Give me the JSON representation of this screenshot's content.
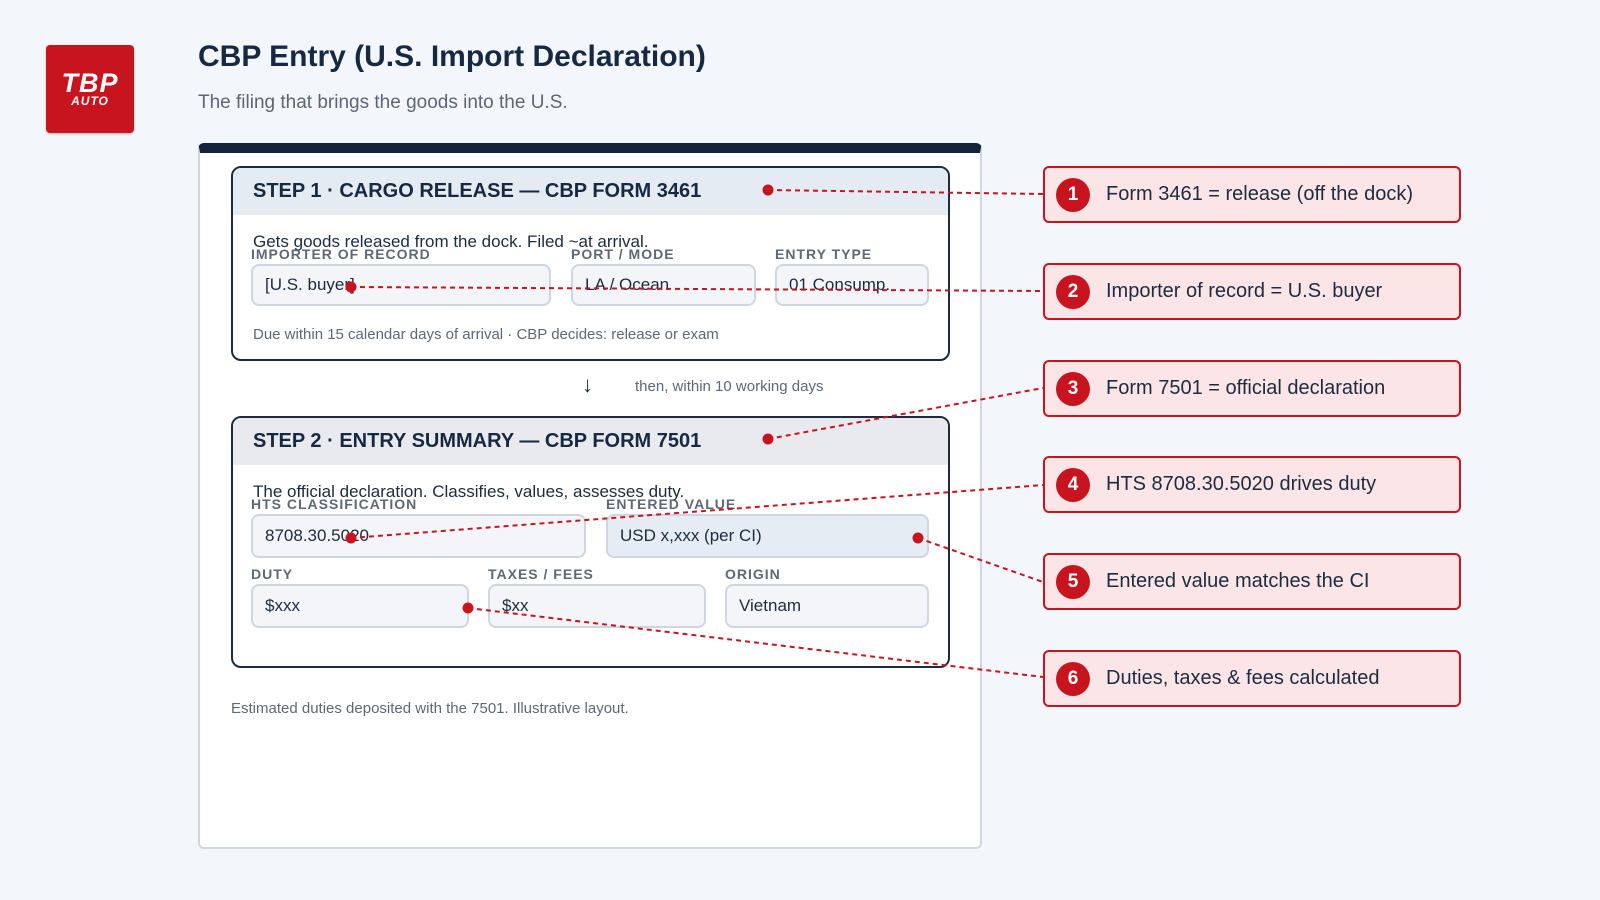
{
  "logo": {
    "line1": "TBP",
    "line2": "AUTO"
  },
  "header": {
    "title": "CBP Entry (U.S. Import Declaration)",
    "subtitle": "The filing that brings the goods into the U.S."
  },
  "step1": {
    "heading": "STEP 1 · CARGO RELEASE — CBP FORM 3461",
    "description": "Gets goods released from the dock. Filed ~at arrival.",
    "fields": [
      {
        "label": "IMPORTER OF RECORD",
        "value": "[U.S. buyer]"
      },
      {
        "label": "PORT / MODE",
        "value": "LA / Ocean"
      },
      {
        "label": "ENTRY TYPE",
        "value": "01 Consump."
      }
    ],
    "note": "Due within 15 calendar days of arrival · CBP decides: release or exam"
  },
  "connector": {
    "arrow": "↓",
    "text": "then, within 10 working days"
  },
  "step2": {
    "heading": "STEP 2 · ENTRY SUMMARY — CBP FORM 7501",
    "description": "The official declaration. Classifies, values, assesses duty.",
    "fields": [
      {
        "label": "HTS CLASSIFICATION",
        "value": "8708.30.5020"
      },
      {
        "label": "ENTERED VALUE",
        "value": "USD x,xxx (per CI)"
      },
      {
        "label": "DUTY",
        "value": "$xxx"
      },
      {
        "label": "TAXES / FEES",
        "value": "$xx"
      },
      {
        "label": "ORIGIN",
        "value": "Vietnam"
      }
    ]
  },
  "footnote": "Estimated duties deposited with the 7501. Illustrative layout.",
  "callouts": [
    {
      "number": "1",
      "text": "Form 3461 = release (off the dock)"
    },
    {
      "number": "2",
      "text": "Importer of record = U.S. buyer"
    },
    {
      "number": "3",
      "text": "Form 7501 = official declaration"
    },
    {
      "number": "4",
      "text": "HTS 8708.30.5020 drives duty"
    },
    {
      "number": "5",
      "text": "Entered value matches the CI"
    },
    {
      "number": "6",
      "text": "Duties, taxes & fees calculated"
    }
  ],
  "colors": {
    "accent_red": "#c8141e",
    "navy": "#13233d",
    "callout_fill": "#fbe5e6"
  }
}
